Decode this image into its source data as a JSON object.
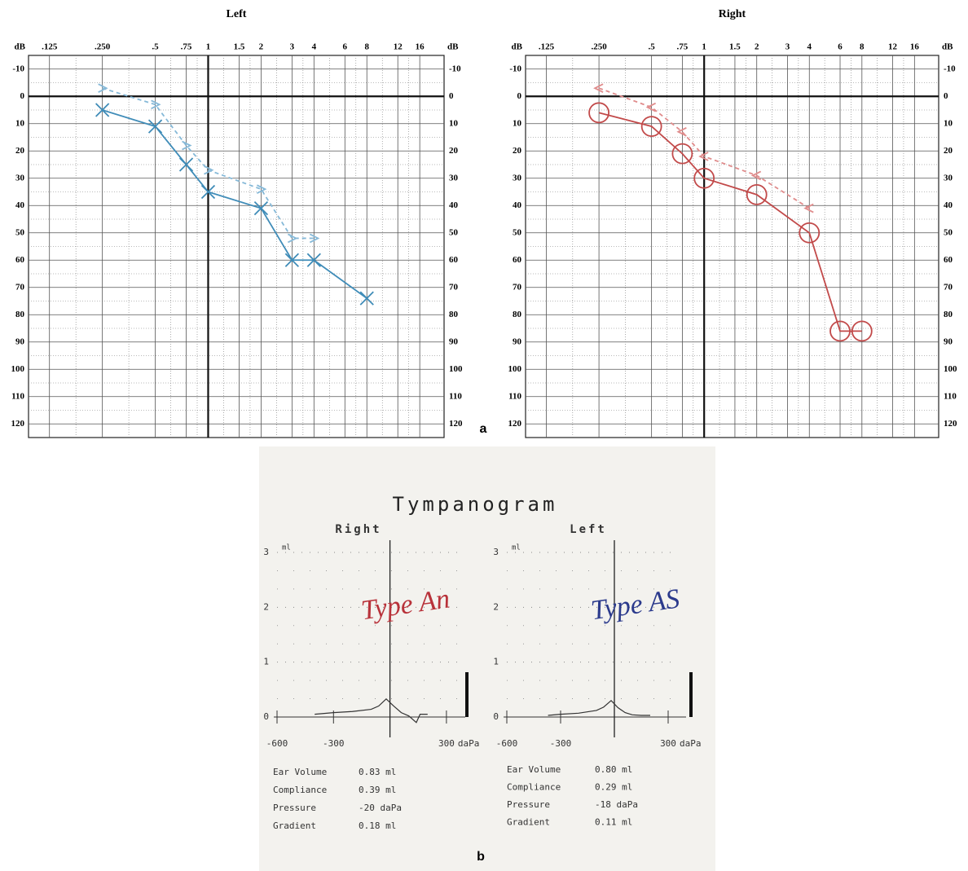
{
  "chart_data": [
    {
      "type": "audiogram",
      "title": "Left",
      "xscale": "log",
      "xlim": [
        0.095,
        22
      ],
      "xticks": [
        {
          "value": 0.125,
          "label": ".125"
        },
        {
          "value": 0.25,
          "label": ".250"
        },
        {
          "value": 0.5,
          "label": ".5"
        },
        {
          "value": 0.75,
          "label": ".75"
        },
        1,
        1.5,
        2,
        3,
        4,
        6,
        8,
        12,
        16
      ],
      "ylim": [
        -15,
        125
      ],
      "y_inverted": true,
      "yticks": [
        -10,
        0,
        10,
        20,
        30,
        40,
        50,
        60,
        70,
        80,
        90,
        100,
        110,
        120
      ],
      "ylabel": "dB",
      "grid": true,
      "reference_lines": {
        "x": 1,
        "y": 0
      },
      "series": [
        {
          "marker": "x",
          "linestyle": "solid",
          "color": "#3f8cb8",
          "x": [
            0.25,
            0.5,
            0.75,
            1,
            2,
            3,
            4,
            8
          ],
          "values": [
            5,
            11,
            25,
            35,
            41,
            60,
            60,
            74
          ]
        },
        {
          "marker": ">",
          "linestyle": "dashed",
          "color": "#86b9d8",
          "x": [
            0.25,
            0.5,
            0.75,
            1,
            2,
            3,
            4
          ],
          "values": [
            -3,
            3,
            18,
            27,
            34,
            52,
            52
          ]
        }
      ]
    },
    {
      "type": "audiogram",
      "title": "Right",
      "xscale": "log",
      "xlim": [
        0.095,
        22
      ],
      "xticks": [
        {
          "value": 0.125,
          "label": ".125"
        },
        {
          "value": 0.25,
          "label": ".250"
        },
        {
          "value": 0.5,
          "label": ".5"
        },
        {
          "value": 0.75,
          "label": ".75"
        },
        1,
        1.5,
        2,
        3,
        4,
        6,
        8,
        12,
        16
      ],
      "ylim": [
        -15,
        125
      ],
      "y_inverted": true,
      "yticks": [
        -10,
        0,
        10,
        20,
        30,
        40,
        50,
        60,
        70,
        80,
        90,
        100,
        110,
        120
      ],
      "ylabel": "dB",
      "grid": true,
      "reference_lines": {
        "x": 1,
        "y": 0
      },
      "series": [
        {
          "marker": "o",
          "linestyle": "solid",
          "color": "#c24a4a",
          "x": [
            0.25,
            0.5,
            0.75,
            1,
            2,
            4,
            6,
            8
          ],
          "values": [
            6,
            11,
            21,
            30,
            36,
            50,
            86,
            86
          ]
        },
        {
          "marker": "<",
          "linestyle": "dashed",
          "color": "#e08c8c",
          "x": [
            0.25,
            0.5,
            0.75,
            1,
            2,
            4
          ],
          "values": [
            -3,
            4,
            13,
            22,
            29,
            41
          ]
        }
      ]
    },
    {
      "type": "tympanogram",
      "title": "Tympanogram",
      "panels": [
        {
          "title": "Right",
          "annotation": "Type An",
          "annotation_color": "#b8323a",
          "ylabel": "ml",
          "xlabel": "daPa",
          "xlim": [
            -600,
            400
          ],
          "ylim": [
            0,
            3
          ],
          "xticks": [
            -600,
            -300,
            300
          ],
          "yticks": [
            0,
            1,
            2,
            3
          ],
          "reference_lines": {
            "x": 0
          },
          "color": "#333333",
          "x": [
            -400,
            -300,
            -200,
            -100,
            -60,
            -20,
            20,
            60,
            100,
            140,
            160,
            200
          ],
          "values": [
            0.05,
            0.08,
            0.1,
            0.14,
            0.2,
            0.33,
            0.2,
            0.08,
            0.02,
            -0.1,
            0.05,
            0.05
          ],
          "measurements": [
            {
              "label": "Ear Volume",
              "value": "0.83 ml"
            },
            {
              "label": "Compliance",
              "value": "0.39 ml"
            },
            {
              "label": "Pressure",
              "value": "-20 daPa"
            },
            {
              "label": "Gradient",
              "value": "0.18 ml"
            }
          ]
        },
        {
          "title": "Left",
          "annotation": "Type AS",
          "annotation_color": "#2b3a8c",
          "ylabel": "ml",
          "xlabel": "daPa",
          "xlim": [
            -600,
            400
          ],
          "ylim": [
            0,
            3
          ],
          "xticks": [
            -600,
            -300,
            300
          ],
          "yticks": [
            0,
            1,
            2,
            3
          ],
          "reference_lines": {
            "x": 0
          },
          "color": "#333333",
          "x": [
            -370,
            -300,
            -200,
            -100,
            -60,
            -18,
            20,
            60,
            100,
            150,
            200
          ],
          "values": [
            0.03,
            0.05,
            0.07,
            0.12,
            0.18,
            0.3,
            0.17,
            0.08,
            0.04,
            0.03,
            0.03
          ],
          "measurements": [
            {
              "label": "Ear Volume",
              "value": "0.80 ml"
            },
            {
              "label": "Compliance",
              "value": "0.29 ml"
            },
            {
              "label": "Pressure",
              "value": "-18 daPa"
            },
            {
              "label": "Gradient",
              "value": "0.11 ml"
            }
          ]
        }
      ]
    }
  ],
  "panel_labels": [
    "a",
    "b"
  ]
}
